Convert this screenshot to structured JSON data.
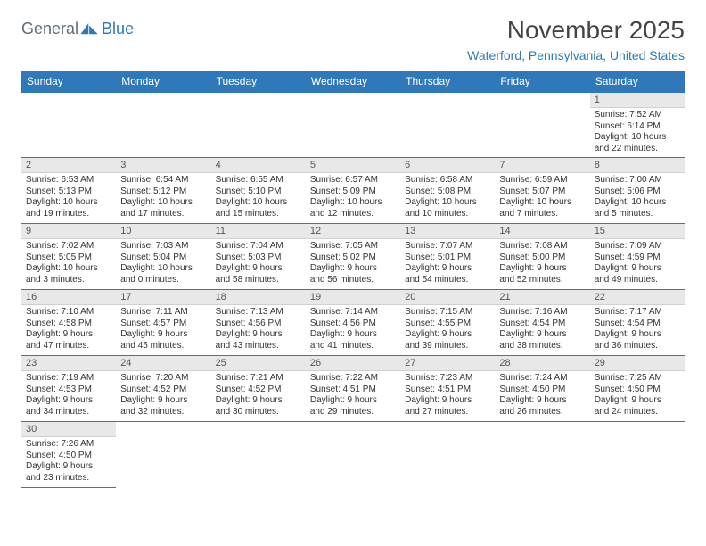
{
  "logo": {
    "part1": "General",
    "part2": "Blue"
  },
  "title": "November 2025",
  "subtitle": "Waterford, Pennsylvania, United States",
  "colors": {
    "header_bg": "#2f78b9",
    "header_text": "#ffffff",
    "daynum_bg": "#e8e8e8",
    "border": "#2f78b9",
    "title_color": "#444444",
    "subtitle_color": "#2f78b9"
  },
  "weekdays": [
    "Sunday",
    "Monday",
    "Tuesday",
    "Wednesday",
    "Thursday",
    "Friday",
    "Saturday"
  ],
  "weeks": [
    [
      null,
      null,
      null,
      null,
      null,
      null,
      {
        "n": "1",
        "sr": "Sunrise: 7:52 AM",
        "ss": "Sunset: 6:14 PM",
        "d1": "Daylight: 10 hours",
        "d2": "and 22 minutes."
      }
    ],
    [
      {
        "n": "2",
        "sr": "Sunrise: 6:53 AM",
        "ss": "Sunset: 5:13 PM",
        "d1": "Daylight: 10 hours",
        "d2": "and 19 minutes."
      },
      {
        "n": "3",
        "sr": "Sunrise: 6:54 AM",
        "ss": "Sunset: 5:12 PM",
        "d1": "Daylight: 10 hours",
        "d2": "and 17 minutes."
      },
      {
        "n": "4",
        "sr": "Sunrise: 6:55 AM",
        "ss": "Sunset: 5:10 PM",
        "d1": "Daylight: 10 hours",
        "d2": "and 15 minutes."
      },
      {
        "n": "5",
        "sr": "Sunrise: 6:57 AM",
        "ss": "Sunset: 5:09 PM",
        "d1": "Daylight: 10 hours",
        "d2": "and 12 minutes."
      },
      {
        "n": "6",
        "sr": "Sunrise: 6:58 AM",
        "ss": "Sunset: 5:08 PM",
        "d1": "Daylight: 10 hours",
        "d2": "and 10 minutes."
      },
      {
        "n": "7",
        "sr": "Sunrise: 6:59 AM",
        "ss": "Sunset: 5:07 PM",
        "d1": "Daylight: 10 hours",
        "d2": "and 7 minutes."
      },
      {
        "n": "8",
        "sr": "Sunrise: 7:00 AM",
        "ss": "Sunset: 5:06 PM",
        "d1": "Daylight: 10 hours",
        "d2": "and 5 minutes."
      }
    ],
    [
      {
        "n": "9",
        "sr": "Sunrise: 7:02 AM",
        "ss": "Sunset: 5:05 PM",
        "d1": "Daylight: 10 hours",
        "d2": "and 3 minutes."
      },
      {
        "n": "10",
        "sr": "Sunrise: 7:03 AM",
        "ss": "Sunset: 5:04 PM",
        "d1": "Daylight: 10 hours",
        "d2": "and 0 minutes."
      },
      {
        "n": "11",
        "sr": "Sunrise: 7:04 AM",
        "ss": "Sunset: 5:03 PM",
        "d1": "Daylight: 9 hours",
        "d2": "and 58 minutes."
      },
      {
        "n": "12",
        "sr": "Sunrise: 7:05 AM",
        "ss": "Sunset: 5:02 PM",
        "d1": "Daylight: 9 hours",
        "d2": "and 56 minutes."
      },
      {
        "n": "13",
        "sr": "Sunrise: 7:07 AM",
        "ss": "Sunset: 5:01 PM",
        "d1": "Daylight: 9 hours",
        "d2": "and 54 minutes."
      },
      {
        "n": "14",
        "sr": "Sunrise: 7:08 AM",
        "ss": "Sunset: 5:00 PM",
        "d1": "Daylight: 9 hours",
        "d2": "and 52 minutes."
      },
      {
        "n": "15",
        "sr": "Sunrise: 7:09 AM",
        "ss": "Sunset: 4:59 PM",
        "d1": "Daylight: 9 hours",
        "d2": "and 49 minutes."
      }
    ],
    [
      {
        "n": "16",
        "sr": "Sunrise: 7:10 AM",
        "ss": "Sunset: 4:58 PM",
        "d1": "Daylight: 9 hours",
        "d2": "and 47 minutes."
      },
      {
        "n": "17",
        "sr": "Sunrise: 7:11 AM",
        "ss": "Sunset: 4:57 PM",
        "d1": "Daylight: 9 hours",
        "d2": "and 45 minutes."
      },
      {
        "n": "18",
        "sr": "Sunrise: 7:13 AM",
        "ss": "Sunset: 4:56 PM",
        "d1": "Daylight: 9 hours",
        "d2": "and 43 minutes."
      },
      {
        "n": "19",
        "sr": "Sunrise: 7:14 AM",
        "ss": "Sunset: 4:56 PM",
        "d1": "Daylight: 9 hours",
        "d2": "and 41 minutes."
      },
      {
        "n": "20",
        "sr": "Sunrise: 7:15 AM",
        "ss": "Sunset: 4:55 PM",
        "d1": "Daylight: 9 hours",
        "d2": "and 39 minutes."
      },
      {
        "n": "21",
        "sr": "Sunrise: 7:16 AM",
        "ss": "Sunset: 4:54 PM",
        "d1": "Daylight: 9 hours",
        "d2": "and 38 minutes."
      },
      {
        "n": "22",
        "sr": "Sunrise: 7:17 AM",
        "ss": "Sunset: 4:54 PM",
        "d1": "Daylight: 9 hours",
        "d2": "and 36 minutes."
      }
    ],
    [
      {
        "n": "23",
        "sr": "Sunrise: 7:19 AM",
        "ss": "Sunset: 4:53 PM",
        "d1": "Daylight: 9 hours",
        "d2": "and 34 minutes."
      },
      {
        "n": "24",
        "sr": "Sunrise: 7:20 AM",
        "ss": "Sunset: 4:52 PM",
        "d1": "Daylight: 9 hours",
        "d2": "and 32 minutes."
      },
      {
        "n": "25",
        "sr": "Sunrise: 7:21 AM",
        "ss": "Sunset: 4:52 PM",
        "d1": "Daylight: 9 hours",
        "d2": "and 30 minutes."
      },
      {
        "n": "26",
        "sr": "Sunrise: 7:22 AM",
        "ss": "Sunset: 4:51 PM",
        "d1": "Daylight: 9 hours",
        "d2": "and 29 minutes."
      },
      {
        "n": "27",
        "sr": "Sunrise: 7:23 AM",
        "ss": "Sunset: 4:51 PM",
        "d1": "Daylight: 9 hours",
        "d2": "and 27 minutes."
      },
      {
        "n": "28",
        "sr": "Sunrise: 7:24 AM",
        "ss": "Sunset: 4:50 PM",
        "d1": "Daylight: 9 hours",
        "d2": "and 26 minutes."
      },
      {
        "n": "29",
        "sr": "Sunrise: 7:25 AM",
        "ss": "Sunset: 4:50 PM",
        "d1": "Daylight: 9 hours",
        "d2": "and 24 minutes."
      }
    ],
    [
      {
        "n": "30",
        "sr": "Sunrise: 7:26 AM",
        "ss": "Sunset: 4:50 PM",
        "d1": "Daylight: 9 hours",
        "d2": "and 23 minutes."
      },
      null,
      null,
      null,
      null,
      null,
      null
    ]
  ]
}
